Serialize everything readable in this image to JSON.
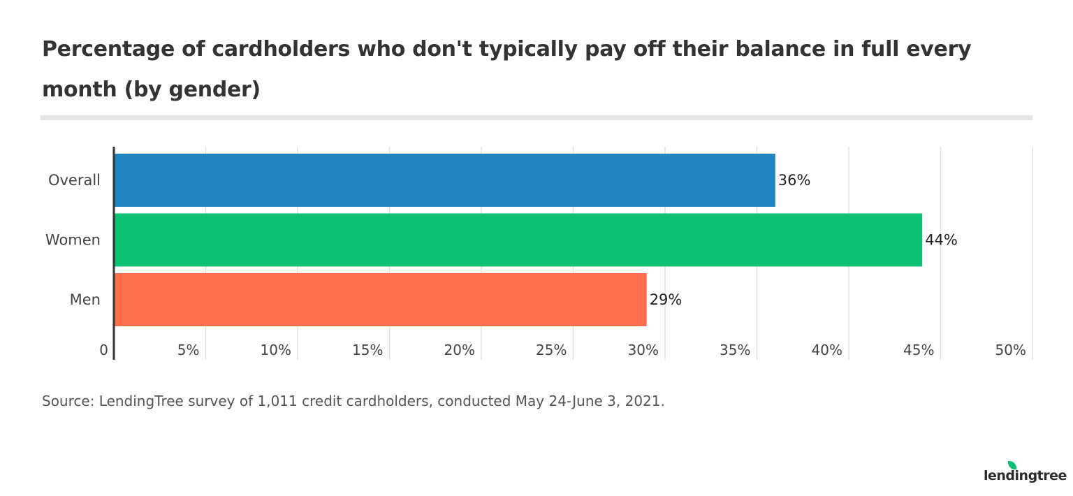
{
  "chart_data": {
    "type": "bar",
    "orientation": "horizontal",
    "title": "Percentage of cardholders who don't typically pay off their balance in full every month (by gender)",
    "categories": [
      "Overall",
      "Women",
      "Men"
    ],
    "values": [
      36,
      44,
      29
    ],
    "value_labels": [
      "36%",
      "44%",
      "29%"
    ],
    "colors": [
      "#2185c2",
      "#0bc174",
      "#ff6e4a"
    ],
    "xlim": [
      0,
      50
    ],
    "xticks": [
      0,
      5,
      10,
      15,
      20,
      25,
      30,
      35,
      40,
      45,
      50
    ],
    "xtick_labels": [
      "0",
      "5%",
      "10%",
      "15%",
      "20%",
      "25%",
      "30%",
      "35%",
      "40%",
      "45%",
      "50%"
    ],
    "grid": true,
    "xlabel": "",
    "ylabel": ""
  },
  "source": "Source: LendingTree survey of 1,011 credit cardholders, conducted May 24-June 3, 2021.",
  "logo": "lendingtree"
}
